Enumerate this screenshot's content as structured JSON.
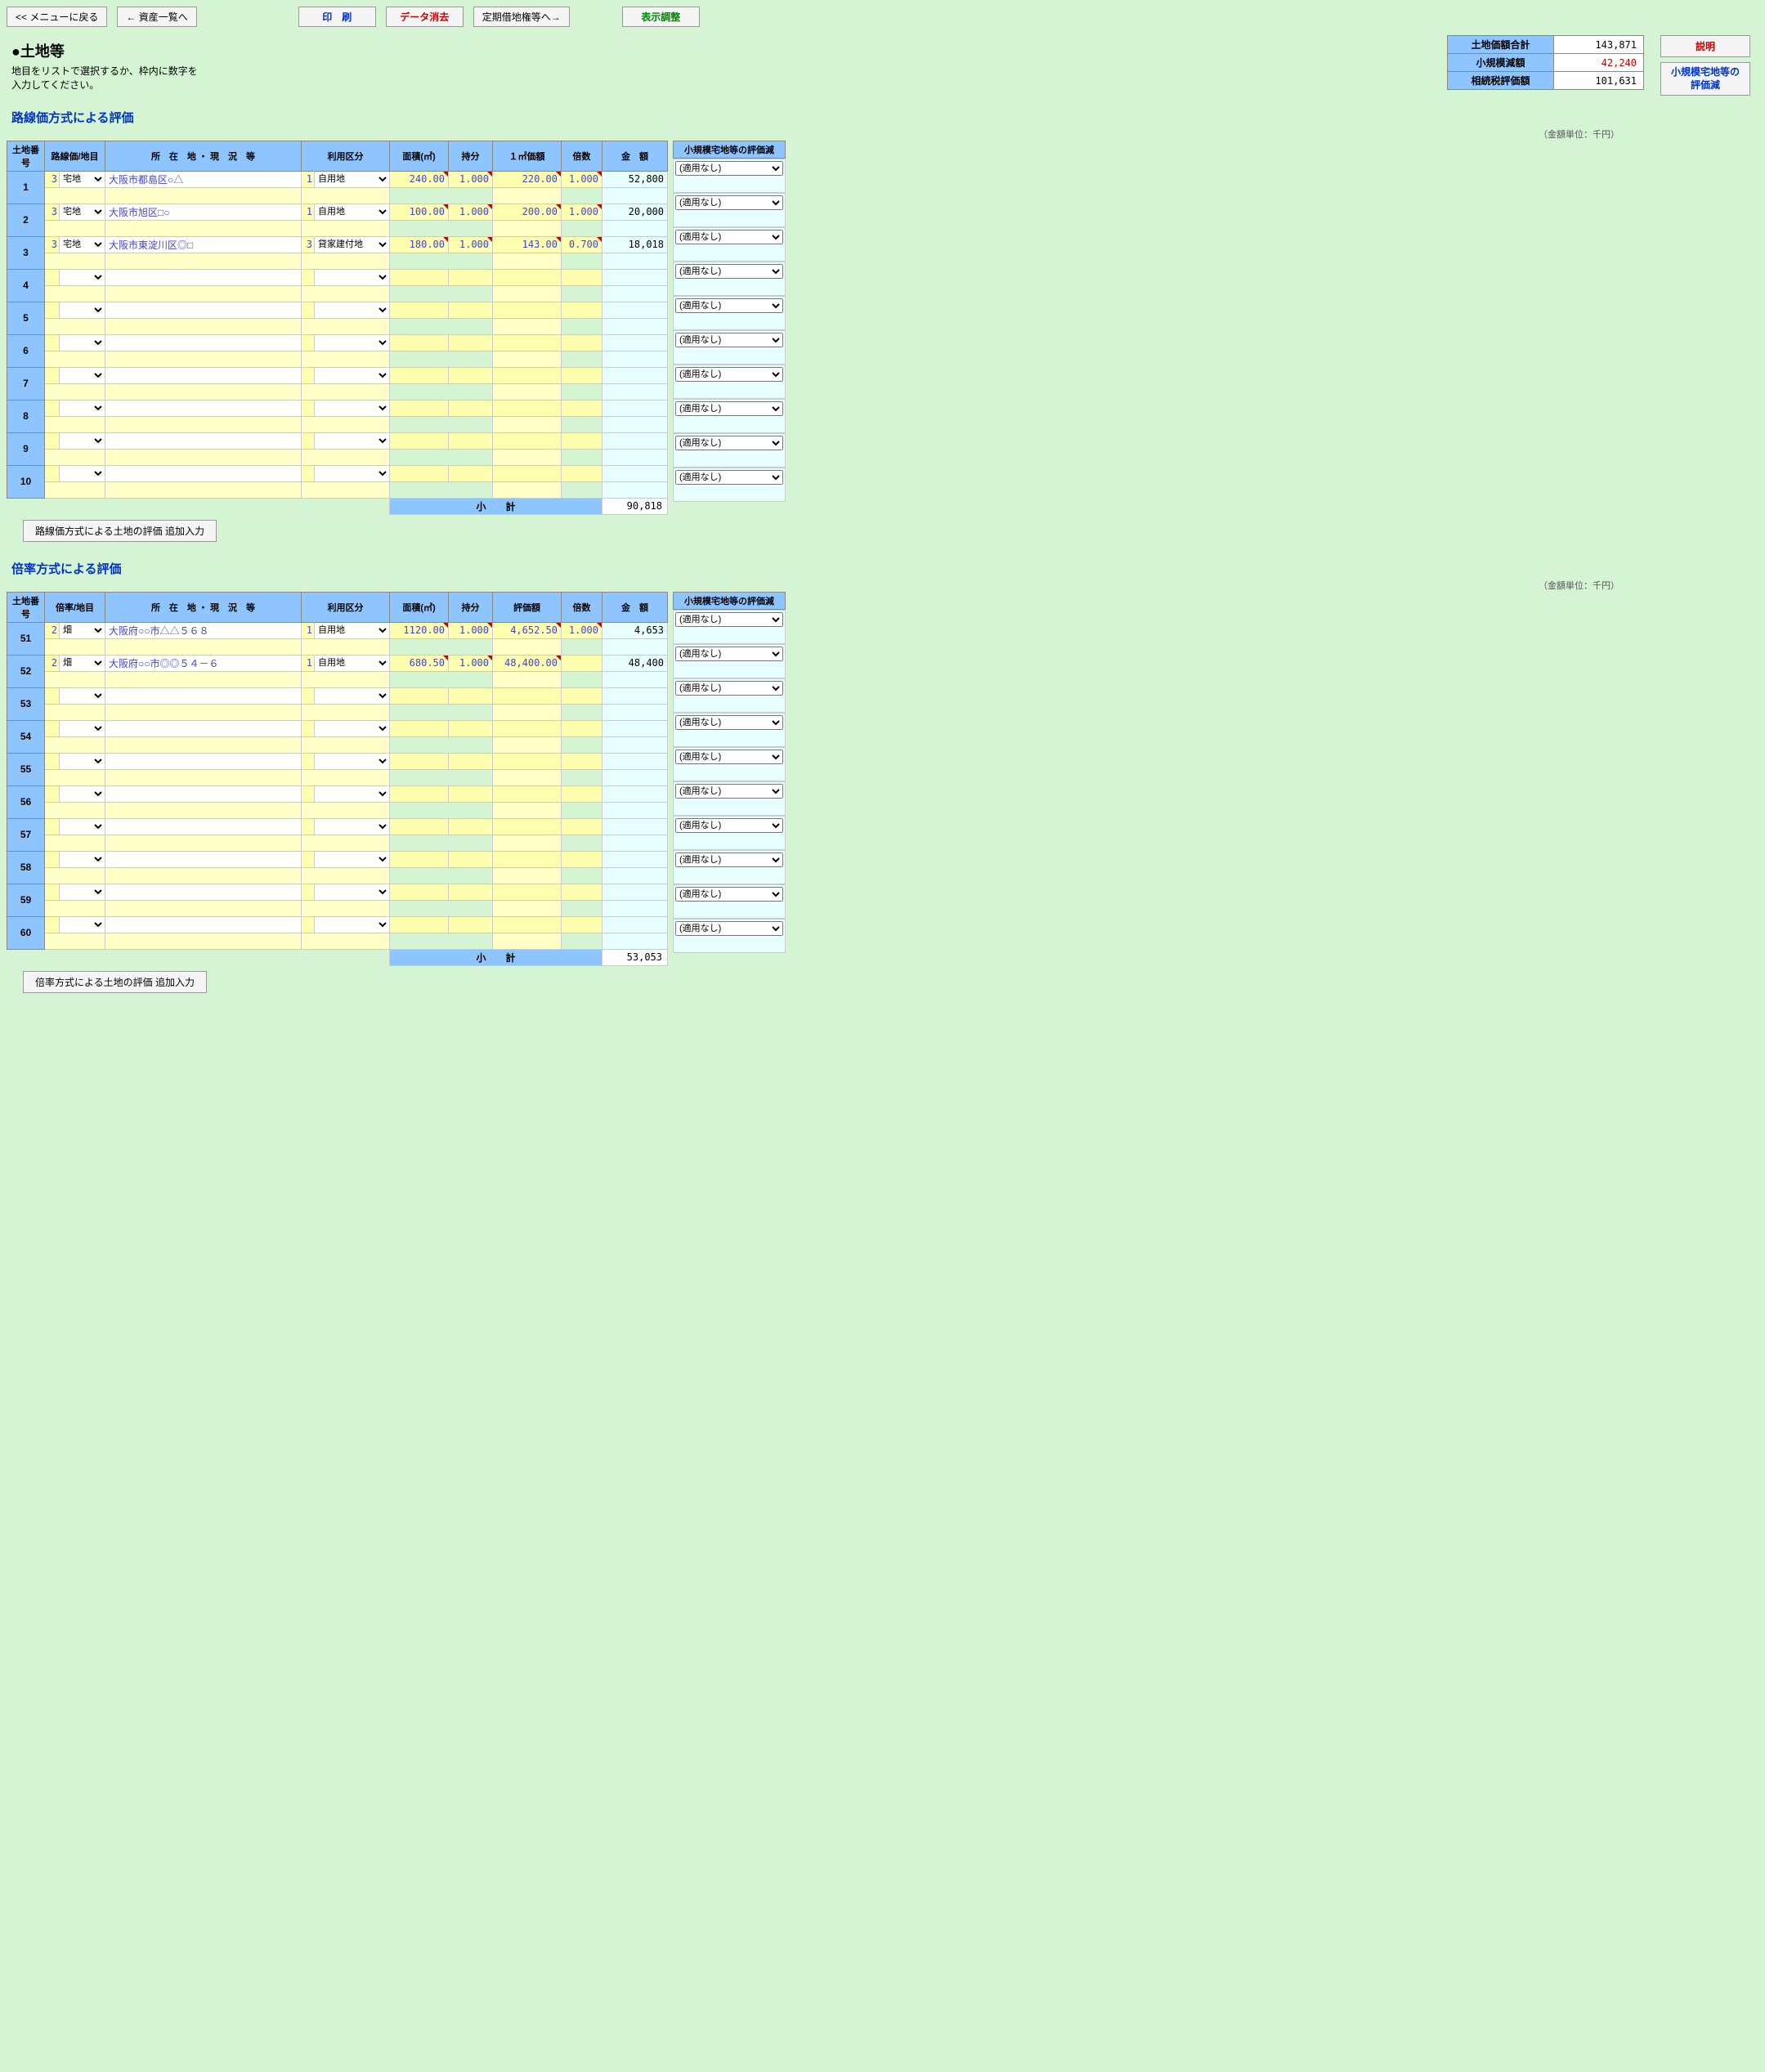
{
  "toolbar": {
    "back_menu": "<< メニューに戻る",
    "asset_list": "← 資産一覧へ",
    "print": "印　刷",
    "clear": "データ消去",
    "lease": "定期借地権等へ→",
    "display": "表示調整"
  },
  "title": "●土地等",
  "subtitle": "地目をリストで選択するか、枠内に数字を\n入力してください。",
  "summary": {
    "l1": "土地価額合計",
    "v1": "143,871",
    "l2": "小規模減額",
    "v2": "42,240",
    "l3": "相続税評価額",
    "v3": "101,631"
  },
  "side_btn1": "説明",
  "side_btn2": "小規模宅地等の\n評価減",
  "unit_note": "（金額単位：千円）",
  "sec1_title": "路線価方式による評価",
  "sec2_title": "倍率方式による評価",
  "headers1": {
    "h1": "土地番号",
    "h2": "路線価/地目",
    "h3": "所　在　地 ・ 現　況　等",
    "h4": "利用区分",
    "h5": "面積(㎡)",
    "h6": "持分",
    "h7": "１㎡価額",
    "h8": "倍数",
    "h9": "金　額"
  },
  "headers2": {
    "h1": "土地番号",
    "h2": "倍率/地目",
    "h3": "所　在　地 ・ 現　況　等",
    "h4": "利用区分",
    "h5": "面積(㎡)",
    "h6": "持分",
    "h7": "評価額",
    "h8": "倍数",
    "h9": "金　額"
  },
  "side_header": "小規模宅地等の評価減",
  "side_option": "(適用なし)",
  "rows1": [
    {
      "num": "1",
      "code": "3",
      "land": "宅地",
      "addr": "大阪市都島区○△",
      "uc": "1",
      "use": "自用地",
      "area": "240.00",
      "share": "1.000",
      "price": "220.00",
      "mult": "1.000",
      "amt": "52,800"
    },
    {
      "num": "2",
      "code": "3",
      "land": "宅地",
      "addr": "大阪市旭区□○",
      "uc": "1",
      "use": "自用地",
      "area": "100.00",
      "share": "1.000",
      "price": "200.00",
      "mult": "1.000",
      "amt": "20,000"
    },
    {
      "num": "3",
      "code": "3",
      "land": "宅地",
      "addr": "大阪市東淀川区◎□",
      "uc": "3",
      "use": "貸家建付地",
      "area": "180.00",
      "share": "1.000",
      "price": "143.00",
      "mult": "0.700",
      "amt": "18,018"
    },
    {
      "num": "4"
    },
    {
      "num": "5"
    },
    {
      "num": "6"
    },
    {
      "num": "7"
    },
    {
      "num": "8"
    },
    {
      "num": "9"
    },
    {
      "num": "10"
    }
  ],
  "subtotal1": {
    "label": "小　　計",
    "val": "90,818"
  },
  "add_btn1": "路線価方式による土地の評価  追加入力",
  "rows2": [
    {
      "num": "51",
      "code": "2",
      "land": "畑",
      "addr": "大阪府○○市△△５６８",
      "uc": "1",
      "use": "自用地",
      "area": "1120.00",
      "share": "1.000",
      "price": "4,652.50",
      "mult": "1.000",
      "amt": "4,653"
    },
    {
      "num": "52",
      "code": "2",
      "land": "畑",
      "addr": "大阪府○○市◎◎５４－６",
      "uc": "1",
      "use": "自用地",
      "area": "680.50",
      "share": "1.000",
      "price": "48,400.00",
      "mult": "",
      "amt": "48,400"
    },
    {
      "num": "53"
    },
    {
      "num": "54"
    },
    {
      "num": "55"
    },
    {
      "num": "56"
    },
    {
      "num": "57"
    },
    {
      "num": "58"
    },
    {
      "num": "59"
    },
    {
      "num": "60"
    }
  ],
  "subtotal2": {
    "label": "小　　計",
    "val": "53,053"
  },
  "add_btn2": "倍率方式による土地の評価  追加入力"
}
